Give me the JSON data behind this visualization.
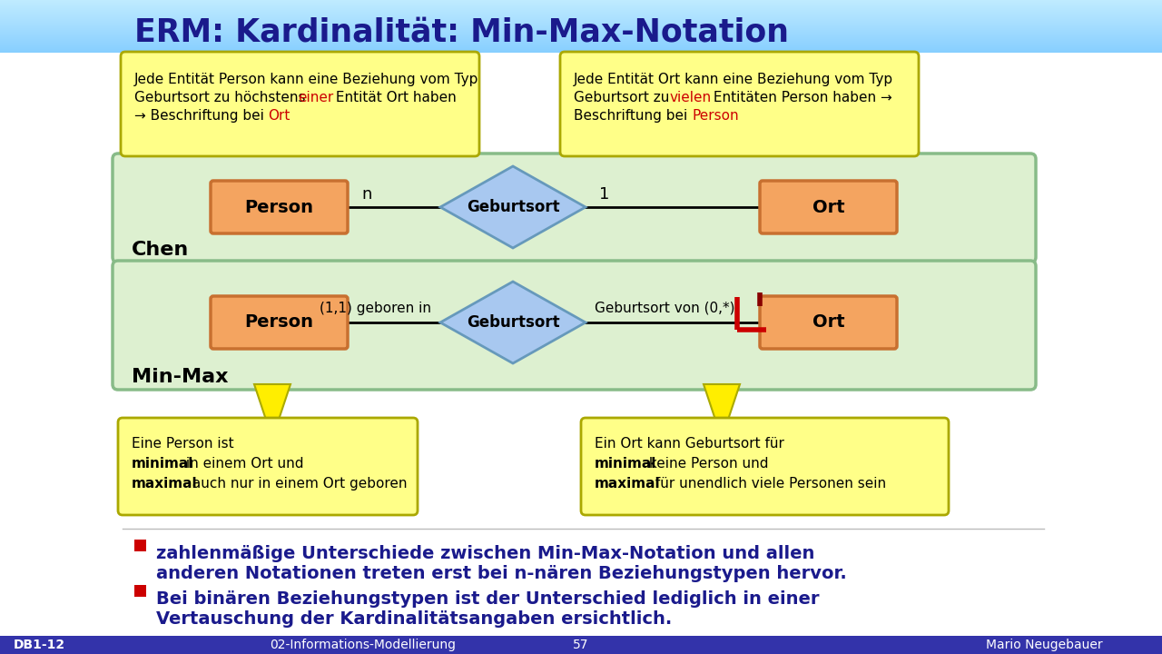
{
  "title": "ERM: Kardinalität: Min-Max-Notation",
  "title_color": "#1a1a8c",
  "footer_texts": [
    "DB1-12",
    "02-Informations-Modellierung",
    "57",
    "Mario Neugebauer"
  ],
  "footer_bg": "#3333aa",
  "callout_bg": "#ffff88",
  "callout_border": "#aaa800",
  "entity_fill": "#f4a460",
  "entity_edge": "#c87030",
  "diamond_fill": "#a8c8f0",
  "diamond_edge": "#6699bb",
  "section_fill": "#ddf0d0",
  "section_edge": "#88bb88",
  "arrow_fill": "#ffee00",
  "arrow_edge": "#aaaa00",
  "red_color": "#cc0000",
  "dark_red": "#770000",
  "bullet_text_color": "#1a1a8c",
  "top_left_line1": "Jede Entität Person kann eine Beziehung vom Typ",
  "top_left_line2_pre": "Geburtsort zu höchstens ",
  "top_left_line2_red": "einer",
  "top_left_line2_post": " Entität Ort haben",
  "top_left_line3_pre": "→ Beschriftung bei ",
  "top_left_line3_red": "Ort",
  "top_right_line1": "Jede Entität Ort kann eine Beziehung vom Typ",
  "top_right_line2_pre": "Geburtsort zu ",
  "top_right_line2_red": "vielen",
  "top_right_line2_post": " Entitäten Person haben →",
  "top_right_line3_pre": "Beschriftung bei ",
  "top_right_line3_red": "Person",
  "bot_left_line1": "Eine Person ist",
  "bot_left_line2_bold": "minimal",
  "bot_left_line2_rest": " in einem Ort und",
  "bot_left_line3_bold": "maximal",
  "bot_left_line3_rest": " auch nur in einem Ort geboren",
  "bot_right_line1": "Ein Ort kann Geburtsort für",
  "bot_right_line2_bold": "minimal",
  "bot_right_line2_rest": " keine Person und",
  "bot_right_line3_bold": "maximal",
  "bot_right_line3_rest": " für unendlich viele Personen sein",
  "bullet1_line1": "zahlenmäßige Unterschiede zwischen Min-Max-Notation und allen",
  "bullet1_line2": "anderen Notationen treten erst bei n-nären Beziehungstypen hervor.",
  "bullet2_line1": "Bei binären Beziehungstypen ist der Unterschied lediglich in einer",
  "bullet2_line2": "Vertauschung der Kardinalitätsangaben ersichtlich."
}
